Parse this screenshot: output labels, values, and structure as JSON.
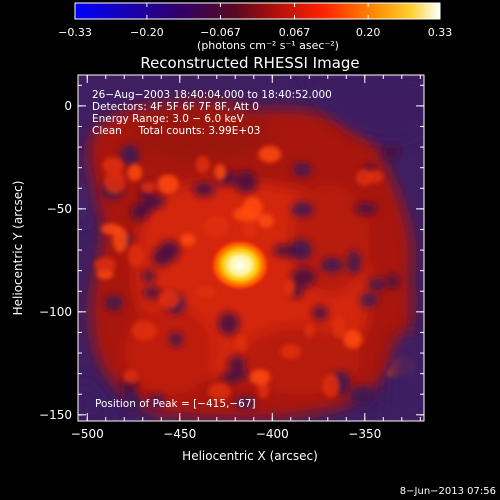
{
  "chart_data": {
    "type": "heatmap",
    "title": "Reconstructed RHESSI Image",
    "xlabel": "Heliocentric X (arcsec)",
    "ylabel": "Heliocentric Y (arcsec)",
    "xlim": [
      -505,
      -318
    ],
    "ylim": [
      -153,
      15
    ],
    "xticks": [
      -500,
      -450,
      -400,
      -350
    ],
    "yticks": [
      0,
      -50,
      -100,
      -150
    ],
    "xtick_labels": [
      "−500",
      "−450",
      "−400",
      "−350"
    ],
    "ytick_labels": [
      "0",
      "−50",
      "−100",
      "−150"
    ],
    "colorbar": {
      "range": [
        -0.33,
        0.33
      ],
      "ticks": [
        -0.33,
        -0.2,
        -0.067,
        0.067,
        0.2,
        0.33
      ],
      "tick_labels": [
        "−0.33",
        "−0.20",
        "−0.067",
        "0.067",
        "0.20",
        "0.33"
      ],
      "unit_label": "(photons cm⁻² s⁻¹ asec⁻²)"
    },
    "annotations": [
      "26−Aug−2003 18:40:04.000 to 18:40:52.000",
      "Detectors: 4F 5F 6F 7F 8F, Att 0",
      "Energy Range: 3.0 − 6.0 keV",
      "Clean     Total counts: 3.99E+03"
    ],
    "peak": {
      "x": -415,
      "y": -67
    },
    "peak_label": "Position of Peak = [−415,−67]"
  },
  "footer": {
    "timestamp": "8−Jun−2013 07:56"
  }
}
